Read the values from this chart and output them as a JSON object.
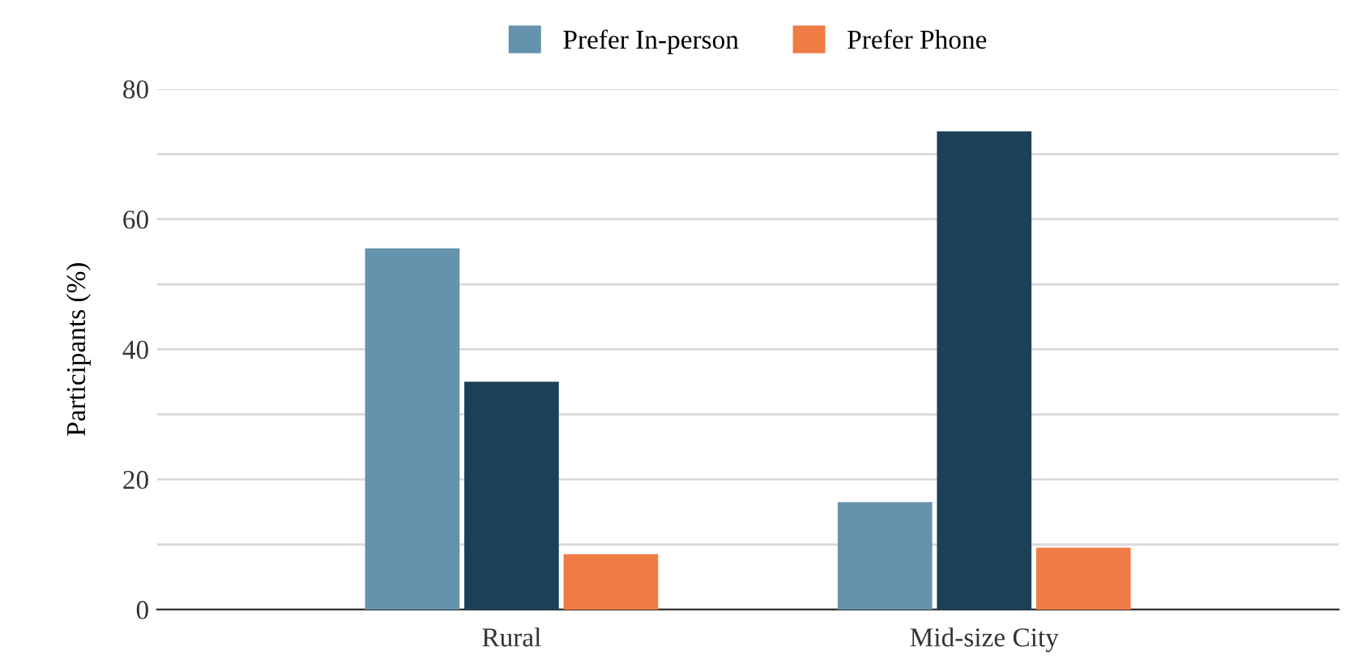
{
  "chart_data": {
    "type": "bar",
    "ylabel": "Participants (%)",
    "categories": [
      "Rural",
      "Mid-size City"
    ],
    "series": [
      {
        "name": "Prefer In-person",
        "color": "#6592ad",
        "values": [
          55.5,
          16.5
        ]
      },
      {
        "color": "#1b4159",
        "values": [
          35,
          73.5
        ]
      },
      {
        "name": "Prefer Phone",
        "color": "#f07c45",
        "values": [
          8.5,
          9.5
        ]
      }
    ],
    "ylim": [
      0,
      80
    ],
    "yticks": [
      0,
      {
        "value": 10,
        "label": null
      },
      20,
      {
        "value": 30,
        "label": null
      },
      40,
      {
        "value": 50,
        "label": null
      },
      60,
      {
        "value": 70,
        "label": null
      },
      80
    ],
    "grid": "y",
    "legend": "top"
  }
}
